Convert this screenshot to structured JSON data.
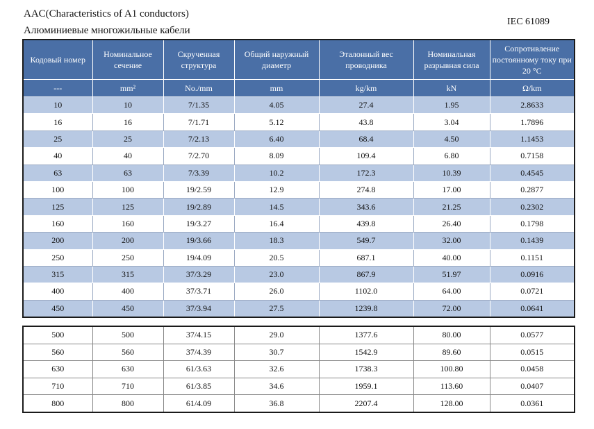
{
  "title_en": "AAC(Characteristics of A1 conductors)",
  "title_ru": "Алюминиевые многожильные кабели",
  "standard": "IEC 61089",
  "headers": [
    "Кодовый номер",
    "Номинальное сечение",
    "Скрученная структура",
    "Общий наружный диаметр",
    "Эталонный вес проводника",
    "Номинальная разрывная сила",
    "Сопротивление постоянному току при 20 °C"
  ],
  "units": [
    "---",
    "mm²",
    "No./mm",
    "mm",
    "kg/km",
    "kN",
    "Ω/km"
  ],
  "rows": [
    [
      "10",
      "10",
      "7/1.35",
      "4.05",
      "27.4",
      "1.95",
      "2.8633"
    ],
    [
      "16",
      "16",
      "7/1.71",
      "5.12",
      "43.8",
      "3.04",
      "1.7896"
    ],
    [
      "25",
      "25",
      "7/2.13",
      "6.40",
      "68.4",
      "4.50",
      "1.1453"
    ],
    [
      "40",
      "40",
      "7/2.70",
      "8.09",
      "109.4",
      "6.80",
      "0.7158"
    ],
    [
      "63",
      "63",
      "7/3.39",
      "10.2",
      "172.3",
      "10.39",
      "0.4545"
    ],
    [
      "100",
      "100",
      "19/2.59",
      "12.9",
      "274.8",
      "17.00",
      "0.2877"
    ],
    [
      "125",
      "125",
      "19/2.89",
      "14.5",
      "343.6",
      "21.25",
      "0.2302"
    ],
    [
      "160",
      "160",
      "19/3.27",
      "16.4",
      "439.8",
      "26.40",
      "0.1798"
    ],
    [
      "200",
      "200",
      "19/3.66",
      "18.3",
      "549.7",
      "32.00",
      "0.1439"
    ],
    [
      "250",
      "250",
      "19/4.09",
      "20.5",
      "687.1",
      "40.00",
      "0.1151"
    ],
    [
      "315",
      "315",
      "37/3.29",
      "23.0",
      "867.9",
      "51.97",
      "0.0916"
    ],
    [
      "400",
      "400",
      "37/3.71",
      "26.0",
      "1102.0",
      "64.00",
      "0.0721"
    ],
    [
      "450",
      "450",
      "37/3.94",
      "27.5",
      "1239.8",
      "72.00",
      "0.0641"
    ]
  ],
  "rows2": [
    [
      "500",
      "500",
      "37/4.15",
      "29.0",
      "1377.6",
      "80.00",
      "0.0577"
    ],
    [
      "560",
      "560",
      "37/4.39",
      "30.7",
      "1542.9",
      "89.60",
      "0.0515"
    ],
    [
      "630",
      "630",
      "61/3.63",
      "32.6",
      "1738.3",
      "100.80",
      "0.0458"
    ],
    [
      "710",
      "710",
      "61/3.85",
      "34.6",
      "1959.1",
      "113.60",
      "0.0407"
    ],
    [
      "800",
      "800",
      "61/4.09",
      "36.8",
      "2207.4",
      "128.00",
      "0.0361"
    ]
  ]
}
